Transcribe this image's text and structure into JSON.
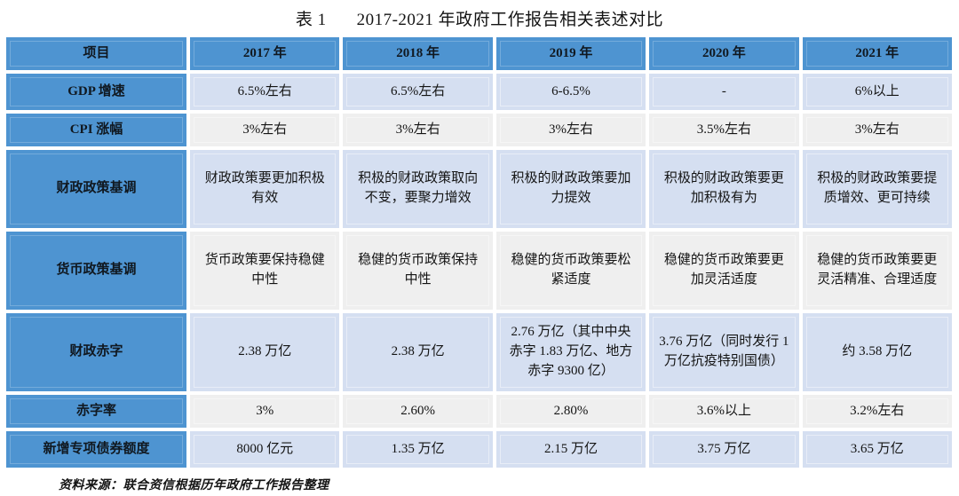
{
  "title": {
    "prefix": "表 1",
    "text": "2017-2021 年政府工作报告相关表述对比"
  },
  "source_note": "资料来源：联合资信根据历年政府工作报告整理",
  "colors": {
    "header_blue": "#4E94D1",
    "band_light_blue": "#D5DFF1",
    "band_light_gray": "#EFEFEF",
    "background": "#FFFFFF"
  },
  "chart_data": {
    "type": "table",
    "title": "表 1 2017-2021 年政府工作报告相关表述对比",
    "columns": [
      "项目",
      "2017 年",
      "2018 年",
      "2019 年",
      "2020 年",
      "2021 年"
    ],
    "rows": [
      [
        "GDP 增速",
        "6.5%左右",
        "6.5%左右",
        "6-6.5%",
        "-",
        "6%以上"
      ],
      [
        "CPI 涨幅",
        "3%左右",
        "3%左右",
        "3%左右",
        "3.5%左右",
        "3%左右"
      ],
      [
        "财政政策基调",
        "财政政策要更加积极有效",
        "积极的财政政策取向不变，要聚力增效",
        "积极的财政政策要加力提效",
        "积极的财政政策要更加积极有为",
        "积极的财政政策要提质增效、更可持续"
      ],
      [
        "货币政策基调",
        "货币政策要保持稳健中性",
        "稳健的货币政策保持中性",
        "稳健的货币政策要松紧适度",
        "稳健的货币政策要更加灵活适度",
        "稳健的货币政策要更灵活精准、合理适度"
      ],
      [
        "财政赤字",
        "2.38 万亿",
        "2.38 万亿",
        "2.76 万亿（其中中央赤字 1.83 万亿、地方赤字 9300 亿）",
        "3.76 万亿（同时发行 1 万亿抗疫特别国债）",
        "约 3.58 万亿"
      ],
      [
        "赤字率",
        "3%",
        "2.60%",
        "2.80%",
        "3.6%以上",
        "3.2%左右"
      ],
      [
        "新增专项债券额度",
        "8000 亿元",
        "1.35 万亿",
        "2.15 万亿",
        "3.75 万亿",
        "3.65 万亿"
      ]
    ]
  },
  "table": {
    "headers": [
      "项目",
      "2017 年",
      "2018 年",
      "2019 年",
      "2020 年",
      "2021 年"
    ],
    "rows": [
      {
        "label": "GDP 增速",
        "cells": [
          "6.5%左右",
          "6.5%左右",
          "6-6.5%",
          "-",
          "6%以上"
        ]
      },
      {
        "label": "CPI 涨幅",
        "cells": [
          "3%左右",
          "3%左右",
          "3%左右",
          "3.5%左右",
          "3%左右"
        ]
      },
      {
        "label": "财政政策基调",
        "cells": [
          "财政政策要更加积极有效",
          "积极的财政政策取向不变，要聚力增效",
          "积极的财政政策要加力提效",
          "积极的财政政策要更加积极有为",
          "积极的财政政策要提质增效、更可持续"
        ]
      },
      {
        "label": "货币政策基调",
        "cells": [
          "货币政策要保持稳健中性",
          "稳健的货币政策保持中性",
          "稳健的货币政策要松紧适度",
          "稳健的货币政策要更加灵活适度",
          "稳健的货币政策要更灵活精准、合理适度"
        ]
      },
      {
        "label": "财政赤字",
        "cells": [
          "2.38 万亿",
          "2.38 万亿",
          "2.76 万亿（其中中央赤字 1.83 万亿、地方赤字 9300 亿）",
          "3.76 万亿（同时发行 1 万亿抗疫特别国债）",
          "约 3.58 万亿"
        ]
      },
      {
        "label": "赤字率",
        "cells": [
          "3%",
          "2.60%",
          "2.80%",
          "3.6%以上",
          "3.2%左右"
        ]
      },
      {
        "label": "新增专项债券额度",
        "cells": [
          "8000 亿元",
          "1.35 万亿",
          "2.15 万亿",
          "3.75 万亿",
          "3.65 万亿"
        ]
      }
    ]
  }
}
